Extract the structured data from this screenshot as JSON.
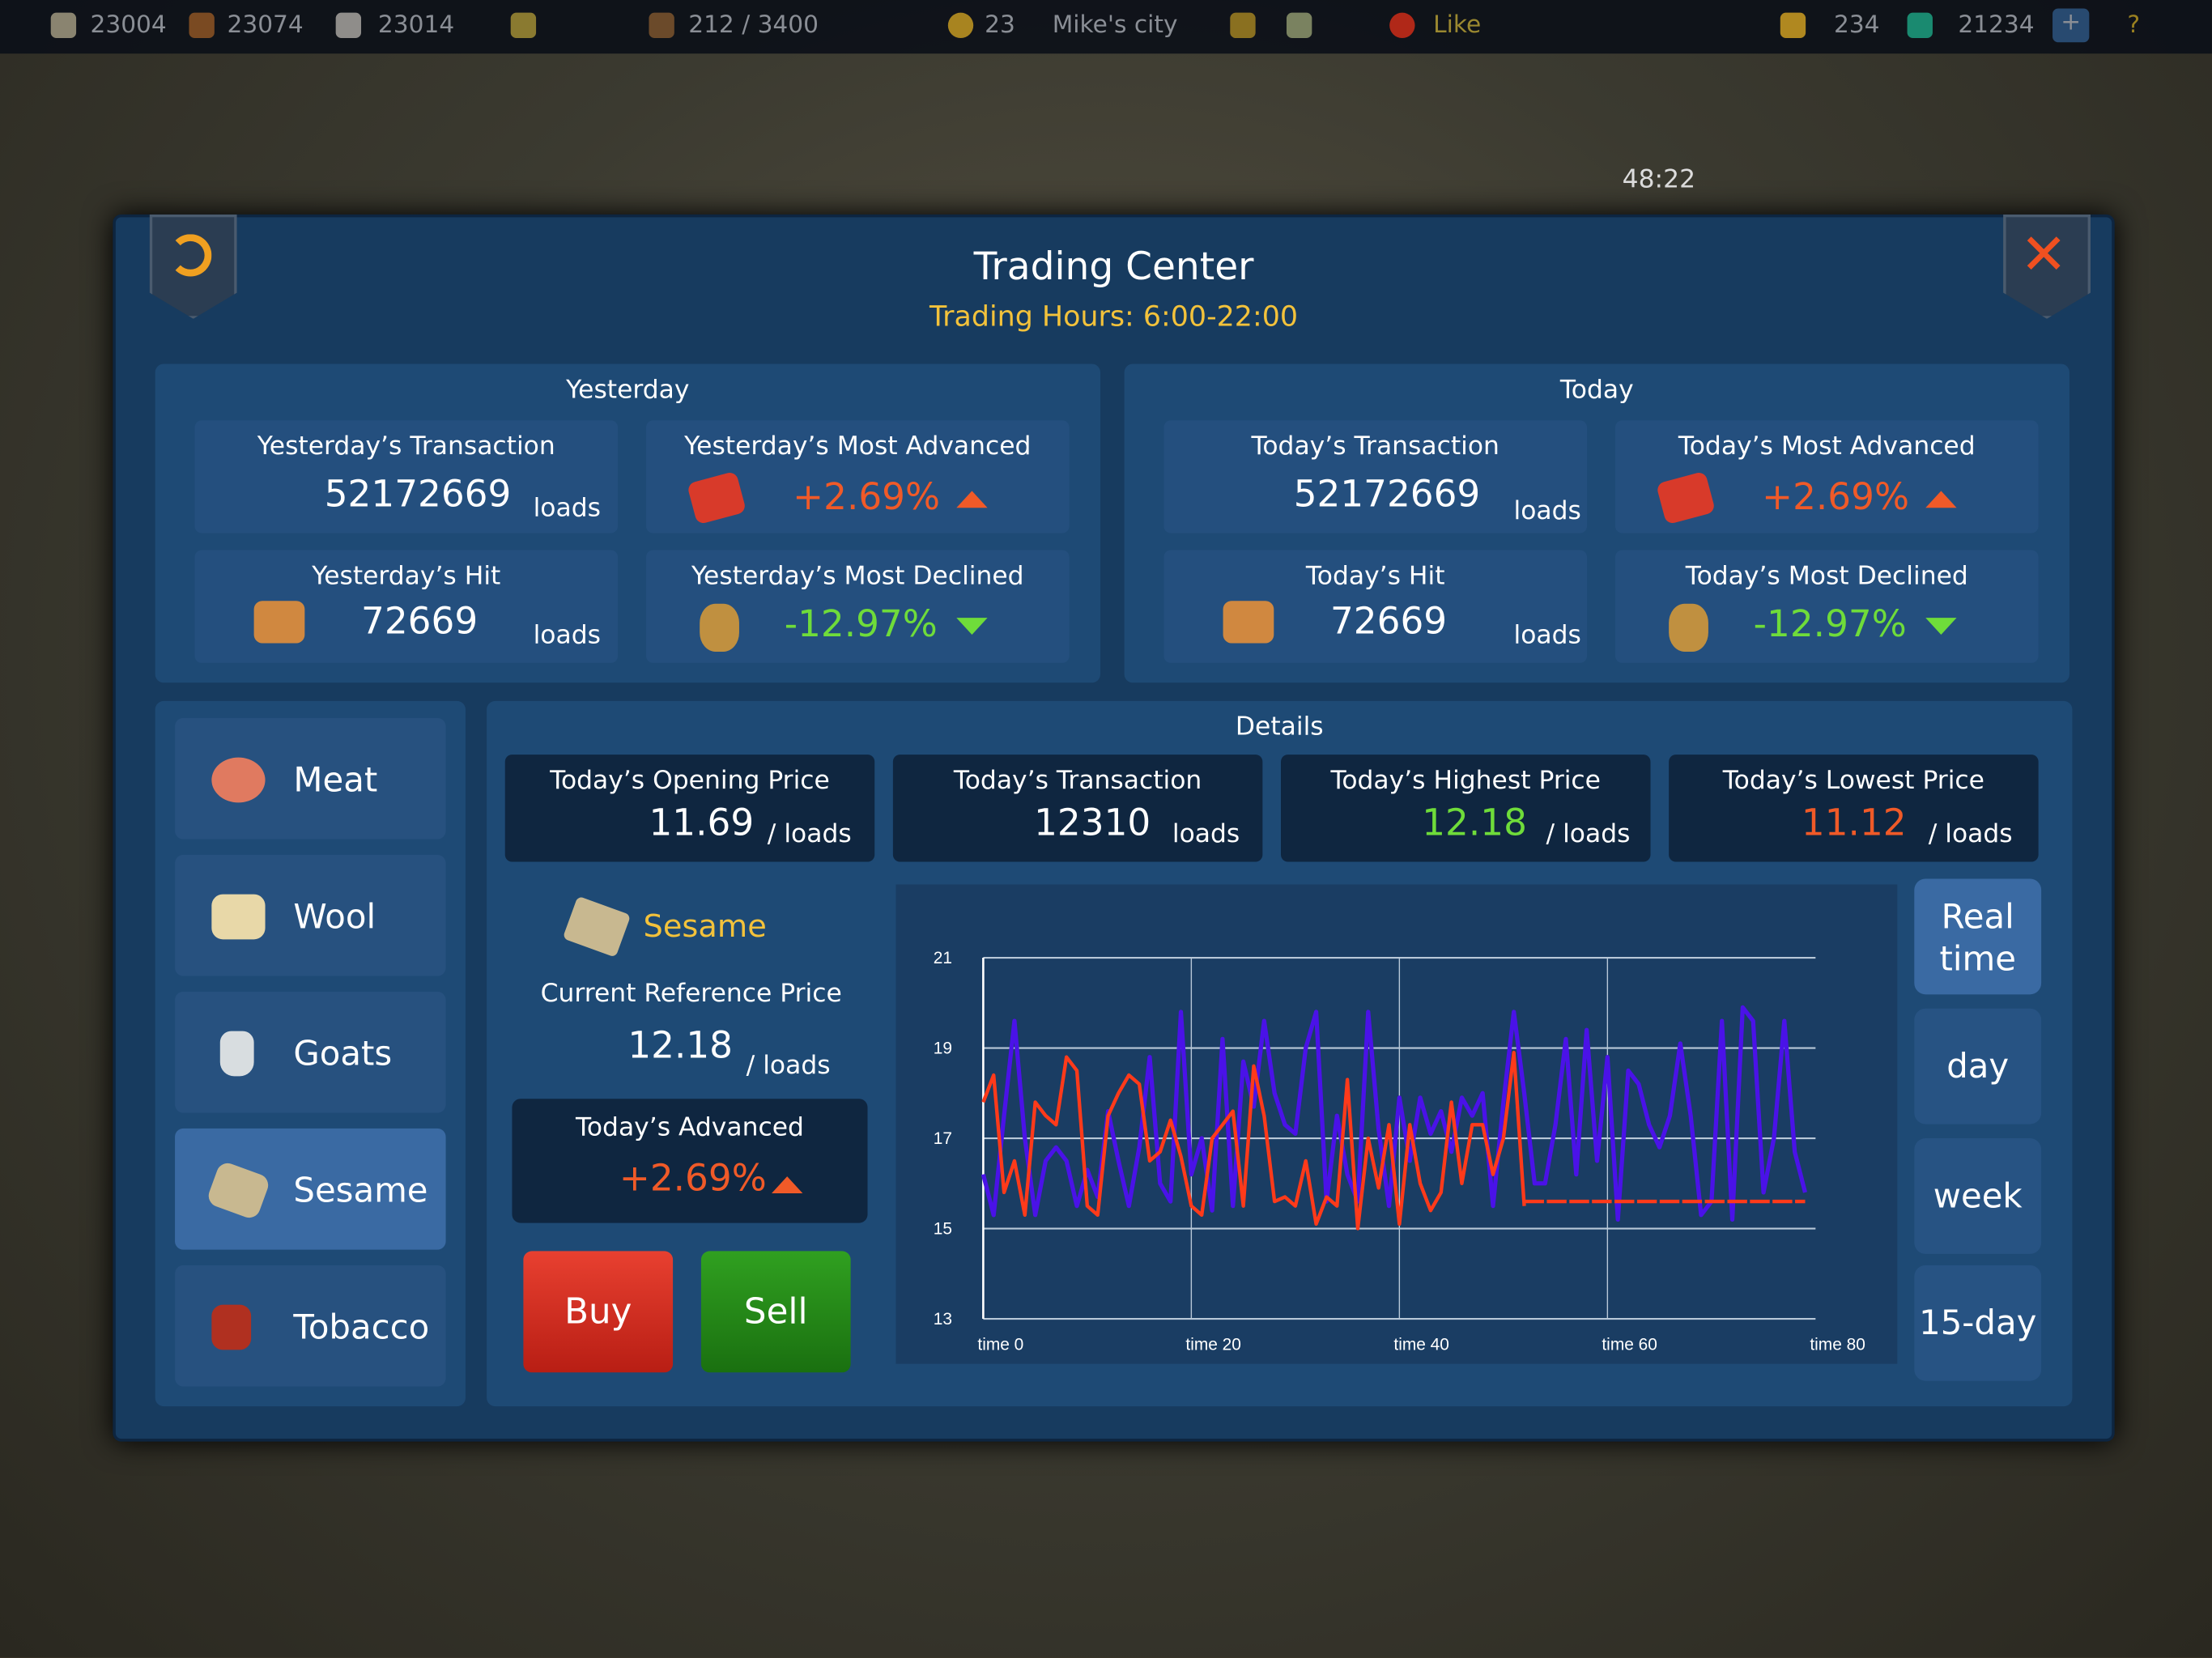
{
  "topbar": {
    "stone": "23004",
    "wood": "23074",
    "iron": "23014",
    "population": "212 / 3400",
    "turns": "23",
    "city": "Mike's city",
    "like": "Like",
    "gold": "234",
    "gems": "21234",
    "plus": "+",
    "help": "?",
    "timer": "48:22"
  },
  "dialog": {
    "title": "Trading Center",
    "hours": "Trading Hours: 6:00-22:00"
  },
  "yesterday": {
    "heading": "Yesterday",
    "transaction_label": "Yesterday’s Transaction",
    "transaction": "52172669",
    "unit": "loads",
    "advanced_label": "Yesterday’s Most Advanced",
    "advanced": "+2.69%",
    "hit_label": "Yesterday’s Hit",
    "hit": "72669",
    "declined_label": "Yesterday’s Most Declined",
    "declined": "-12.97%"
  },
  "today": {
    "heading": "Today",
    "transaction_label": "Today’s Transaction",
    "transaction": "52172669",
    "unit": "loads",
    "advanced_label": "Today’s Most Advanced",
    "advanced": "+2.69%",
    "hit_label": "Today’s Hit",
    "hit": "72669",
    "declined_label": "Today’s Most Declined",
    "declined": "-12.97%"
  },
  "goods": [
    {
      "label": "Meat",
      "icon": "meat-icon"
    },
    {
      "label": "Wool",
      "icon": "wool-icon"
    },
    {
      "label": "Goats",
      "icon": "milk-bottle-icon"
    },
    {
      "label": "Sesame",
      "icon": "sesame-icon",
      "selected": true
    },
    {
      "label": "Tobacco",
      "icon": "tobacco-icon"
    }
  ],
  "details": {
    "heading": "Details",
    "opening_label": "Today’s Opening Price",
    "opening": "11.69",
    "per_loads": "/ loads",
    "trans_label": "Today’s Transaction",
    "trans": "12310",
    "loads": "loads",
    "highest_label": "Today’s Highest Price",
    "highest": "12.18",
    "lowest_label": "Today’s Lowest Price",
    "lowest": "11.12",
    "good": "Sesame",
    "ref_label": "Current Reference Price",
    "ref": "12.18",
    "adv_label": "Today’s Advanced",
    "adv": "+2.69%",
    "buy": "Buy",
    "sell": "Sell"
  },
  "ranges": [
    {
      "label": "Real time",
      "selected": true
    },
    {
      "label": "day"
    },
    {
      "label": "week"
    },
    {
      "label": "15-day"
    }
  ],
  "colors": {
    "up": "#f05a28",
    "down": "#6fdc3a",
    "accent": "#f3c23b",
    "blue_series": "#4a12e8",
    "red_series": "#ff3a1a"
  },
  "chart_data": {
    "type": "line",
    "xlim": [
      0,
      80
    ],
    "ylim": [
      13,
      21
    ],
    "yticks": [
      "13",
      "15",
      "17",
      "19",
      "21"
    ],
    "xticks": [
      "time 0",
      "time 20",
      "time 40",
      "time 60",
      "time 80"
    ],
    "grid": true,
    "series": [
      {
        "color": "#4a12e8",
        "x_step": 1,
        "values": [
          16.2,
          15.3,
          17.5,
          19.6,
          17,
          15.3,
          16.5,
          16.8,
          16.5,
          15.5,
          16.3,
          15.7,
          17.6,
          16.5,
          15.5,
          16.8,
          18.8,
          16,
          15.6,
          19.8,
          16.2,
          17,
          15.4,
          19.2,
          15.5,
          18.7,
          17.7,
          19.6,
          18,
          17.3,
          17.1,
          19,
          19.8,
          15.6,
          17.5,
          16.2,
          15.6,
          19.8,
          17.2,
          15.5,
          17.9,
          16.5,
          17.9,
          17.1,
          17.6,
          16.7,
          17.9,
          17.5,
          18,
          15.5,
          17.8,
          19.8,
          18,
          16,
          16,
          17.3,
          19.2,
          16.2,
          19.4,
          16.5,
          18.8,
          15.2,
          18.5,
          18.2,
          17.3,
          16.8,
          17.5,
          19.1,
          17.5,
          15.3,
          15.6,
          19.6,
          15.2,
          19.9,
          19.6,
          15.8,
          17,
          19.6,
          16.7,
          15.8
        ]
      },
      {
        "color": "#ff3a1a",
        "x_step": 1,
        "values": [
          17.8,
          18.4,
          15.8,
          16.5,
          15.3,
          17.8,
          17.5,
          17.3,
          18.8,
          18.5,
          15.5,
          15.3,
          17.5,
          18,
          18.4,
          18.2,
          16.5,
          16.7,
          17.4,
          16.6,
          15.5,
          15.3,
          17,
          17.3,
          17.6,
          15.5,
          18.6,
          17.5,
          15.6,
          15.7,
          15.5,
          16.5,
          15.1,
          15.7,
          15.5,
          18.3,
          15,
          17,
          15.9,
          17.3,
          15.1,
          17.3,
          16,
          15.4,
          15.8,
          17.8,
          16,
          17.3,
          17.3,
          16.2,
          17,
          18.9,
          15.5
        ]
      },
      {
        "color": "#ff3a1a",
        "style": "dashed",
        "x": [
          52,
          79
        ],
        "values": [
          15.6,
          15.6
        ]
      }
    ]
  }
}
